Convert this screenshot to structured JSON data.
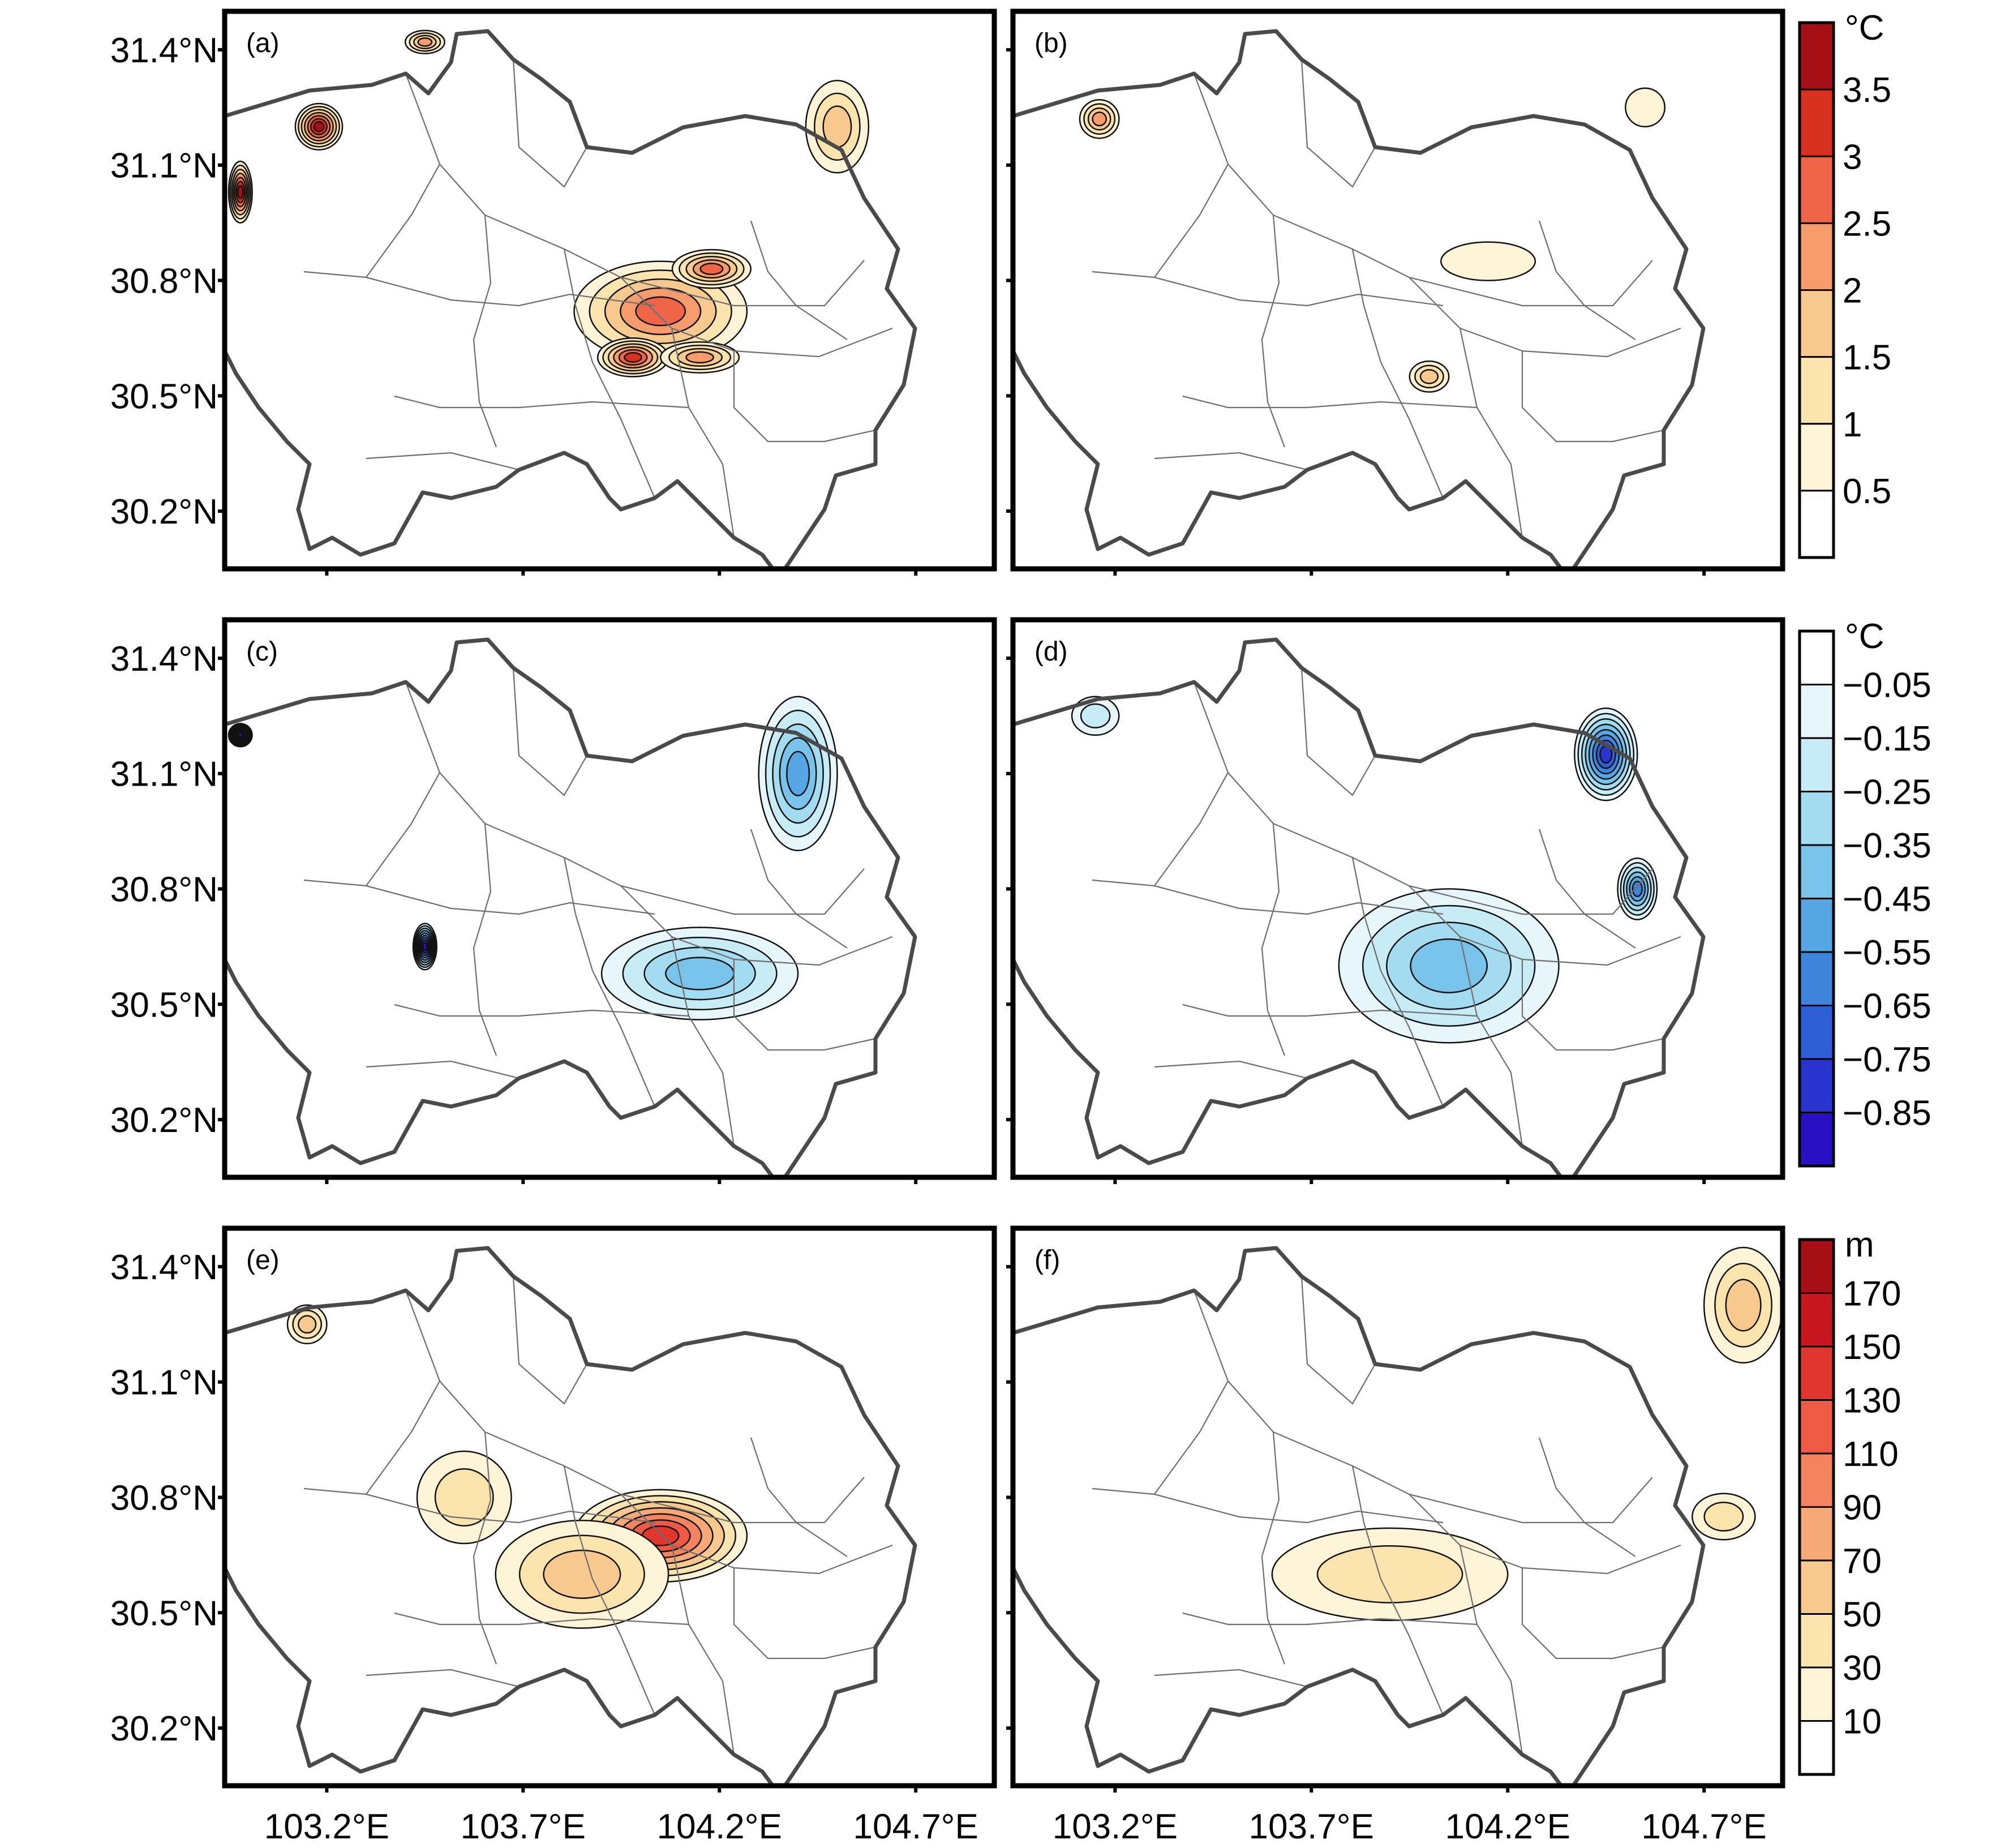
{
  "lat_labels": [
    "31.4°N",
    "31.1°N",
    "30.8°N",
    "30.5°N",
    "30.2°N"
  ],
  "lon_labels": [
    "103.2°E",
    "103.7°E",
    "104.2°E",
    "104.7°E"
  ],
  "panels": [
    {
      "id": "a",
      "label": "(a)"
    },
    {
      "id": "b",
      "label": "(b)"
    },
    {
      "id": "c",
      "label": "(c)"
    },
    {
      "id": "d",
      "label": "(d)"
    },
    {
      "id": "e",
      "label": "(e)"
    },
    {
      "id": "f",
      "label": "(f)"
    }
  ],
  "colorbars": [
    {
      "unit": "°C",
      "labels": [
        "3.5",
        "3",
        "2.5",
        "2",
        "1.5",
        "1",
        "0.5"
      ],
      "colors": [
        "#a50f15",
        "#d7301f",
        "#ef6548",
        "#f59b6c",
        "#f8c98f",
        "#fbe3ad",
        "#fdf3d6",
        "#ffffff"
      ]
    },
    {
      "unit": "°C",
      "labels": [
        "−0.05",
        "−0.15",
        "−0.25",
        "−0.35",
        "−0.45",
        "−0.55",
        "−0.65",
        "−0.75",
        "−0.85"
      ],
      "colors": [
        "#ffffff",
        "#e6f6fb",
        "#c7ecf6",
        "#a3dcf0",
        "#79c3ea",
        "#56a6e3",
        "#3e83dc",
        "#2f5fd6",
        "#2a35d0",
        "#2a10c4"
      ]
    },
    {
      "unit": "m",
      "labels": [
        "170",
        "150",
        "130",
        "110",
        "90",
        "70",
        "50",
        "30",
        "10"
      ],
      "colors": [
        "#a50f15",
        "#c8161e",
        "#e0362d",
        "#ee5a45",
        "#f4845f",
        "#f6a877",
        "#f8c98f",
        "#fbe3ad",
        "#fdf3d6",
        "#ffffff"
      ]
    }
  ],
  "map": {
    "lon_range": [
      102.94,
      104.9
    ],
    "lat_range": [
      30.05,
      31.5
    ],
    "features": [
      {
        "panel": "a",
        "lon": 104.05,
        "lat": 30.72,
        "level": 5,
        "rx": 0.22,
        "ry": 0.13
      },
      {
        "panel": "a",
        "lon": 103.98,
        "lat": 30.6,
        "level": 6,
        "rx": 0.09,
        "ry": 0.05
      },
      {
        "panel": "a",
        "lon": 104.18,
        "lat": 30.83,
        "level": 5,
        "rx": 0.1,
        "ry": 0.05
      },
      {
        "panel": "a",
        "lon": 104.15,
        "lat": 30.6,
        "level": 4,
        "rx": 0.1,
        "ry": 0.04
      },
      {
        "panel": "a",
        "lon": 103.18,
        "lat": 31.2,
        "level": 7,
        "rx": 0.06,
        "ry": 0.06
      },
      {
        "panel": "a",
        "lon": 102.98,
        "lat": 31.03,
        "level": 7,
        "rx": 0.03,
        "ry": 0.08
      },
      {
        "panel": "a",
        "lon": 104.5,
        "lat": 31.2,
        "level": 3,
        "rx": 0.08,
        "ry": 0.12
      },
      {
        "panel": "a",
        "lon": 103.45,
        "lat": 31.42,
        "level": 4,
        "rx": 0.05,
        "ry": 0.03
      },
      {
        "panel": "b",
        "lon": 103.16,
        "lat": 31.22,
        "level": 4,
        "rx": 0.05,
        "ry": 0.05
      },
      {
        "panel": "b",
        "lon": 104.0,
        "lat": 30.55,
        "level": 3,
        "rx": 0.05,
        "ry": 0.04
      },
      {
        "panel": "b",
        "lon": 104.15,
        "lat": 30.85,
        "level": 1,
        "rx": 0.12,
        "ry": 0.05
      },
      {
        "panel": "b",
        "lon": 104.55,
        "lat": 31.25,
        "level": 1,
        "rx": 0.05,
        "ry": 0.05
      },
      {
        "panel": "c",
        "lon": 104.2,
        "lat": 30.58,
        "level": 9,
        "rx": 0.06,
        "ry": 0.04
      },
      {
        "panel": "c",
        "lon": 104.15,
        "lat": 30.58,
        "level": 4,
        "rx": 0.25,
        "ry": 0.12
      },
      {
        "panel": "c",
        "lon": 103.45,
        "lat": 30.65,
        "level": 9,
        "rx": 0.03,
        "ry": 0.06
      },
      {
        "panel": "c",
        "lon": 104.4,
        "lat": 31.1,
        "level": 5,
        "rx": 0.1,
        "ry": 0.2
      },
      {
        "panel": "c",
        "lon": 102.98,
        "lat": 31.2,
        "level": 9,
        "rx": 0.03,
        "ry": 0.03
      },
      {
        "panel": "d",
        "lon": 104.45,
        "lat": 31.15,
        "level": 8,
        "rx": 0.08,
        "ry": 0.12
      },
      {
        "panel": "d",
        "lon": 104.05,
        "lat": 30.6,
        "level": 4,
        "rx": 0.28,
        "ry": 0.2
      },
      {
        "panel": "d",
        "lon": 104.53,
        "lat": 30.8,
        "level": 6,
        "rx": 0.05,
        "ry": 0.08
      },
      {
        "panel": "d",
        "lon": 103.15,
        "lat": 31.25,
        "level": 2,
        "rx": 0.06,
        "ry": 0.05
      },
      {
        "panel": "e",
        "lon": 104.05,
        "lat": 30.7,
        "level": 7,
        "rx": 0.22,
        "ry": 0.12
      },
      {
        "panel": "e",
        "lon": 103.85,
        "lat": 30.6,
        "level": 3,
        "rx": 0.22,
        "ry": 0.14
      },
      {
        "panel": "e",
        "lon": 103.55,
        "lat": 30.8,
        "level": 2,
        "rx": 0.12,
        "ry": 0.12
      },
      {
        "panel": "e",
        "lon": 103.15,
        "lat": 31.25,
        "level": 3,
        "rx": 0.05,
        "ry": 0.05
      },
      {
        "panel": "f",
        "lon": 104.8,
        "lat": 31.3,
        "level": 3,
        "rx": 0.1,
        "ry": 0.15
      },
      {
        "panel": "f",
        "lon": 103.9,
        "lat": 30.6,
        "level": 2,
        "rx": 0.3,
        "ry": 0.12
      },
      {
        "panel": "f",
        "lon": 104.75,
        "lat": 30.75,
        "level": 2,
        "rx": 0.08,
        "ry": 0.06
      }
    ]
  }
}
